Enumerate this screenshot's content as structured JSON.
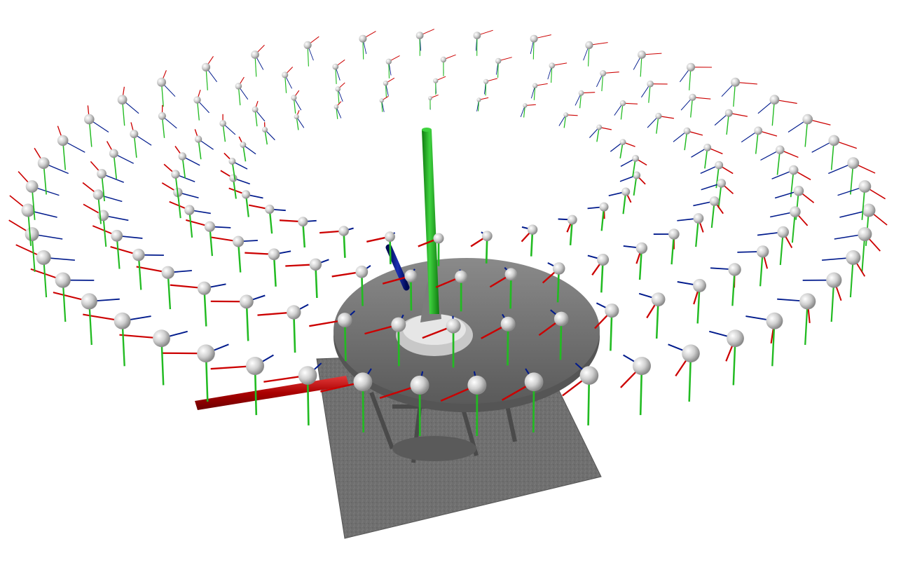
{
  "viewer": {
    "background_color": "#ffffff",
    "axis_colors": {
      "x": "#cc0000",
      "y": "#22bb22",
      "z": "#001a8c"
    },
    "camera_marker": {
      "shape": "sphere",
      "color": "#d8d8d8"
    },
    "model": {
      "description_icon": "mesh-icon",
      "surface_color": "#6e6e6e"
    }
  }
}
